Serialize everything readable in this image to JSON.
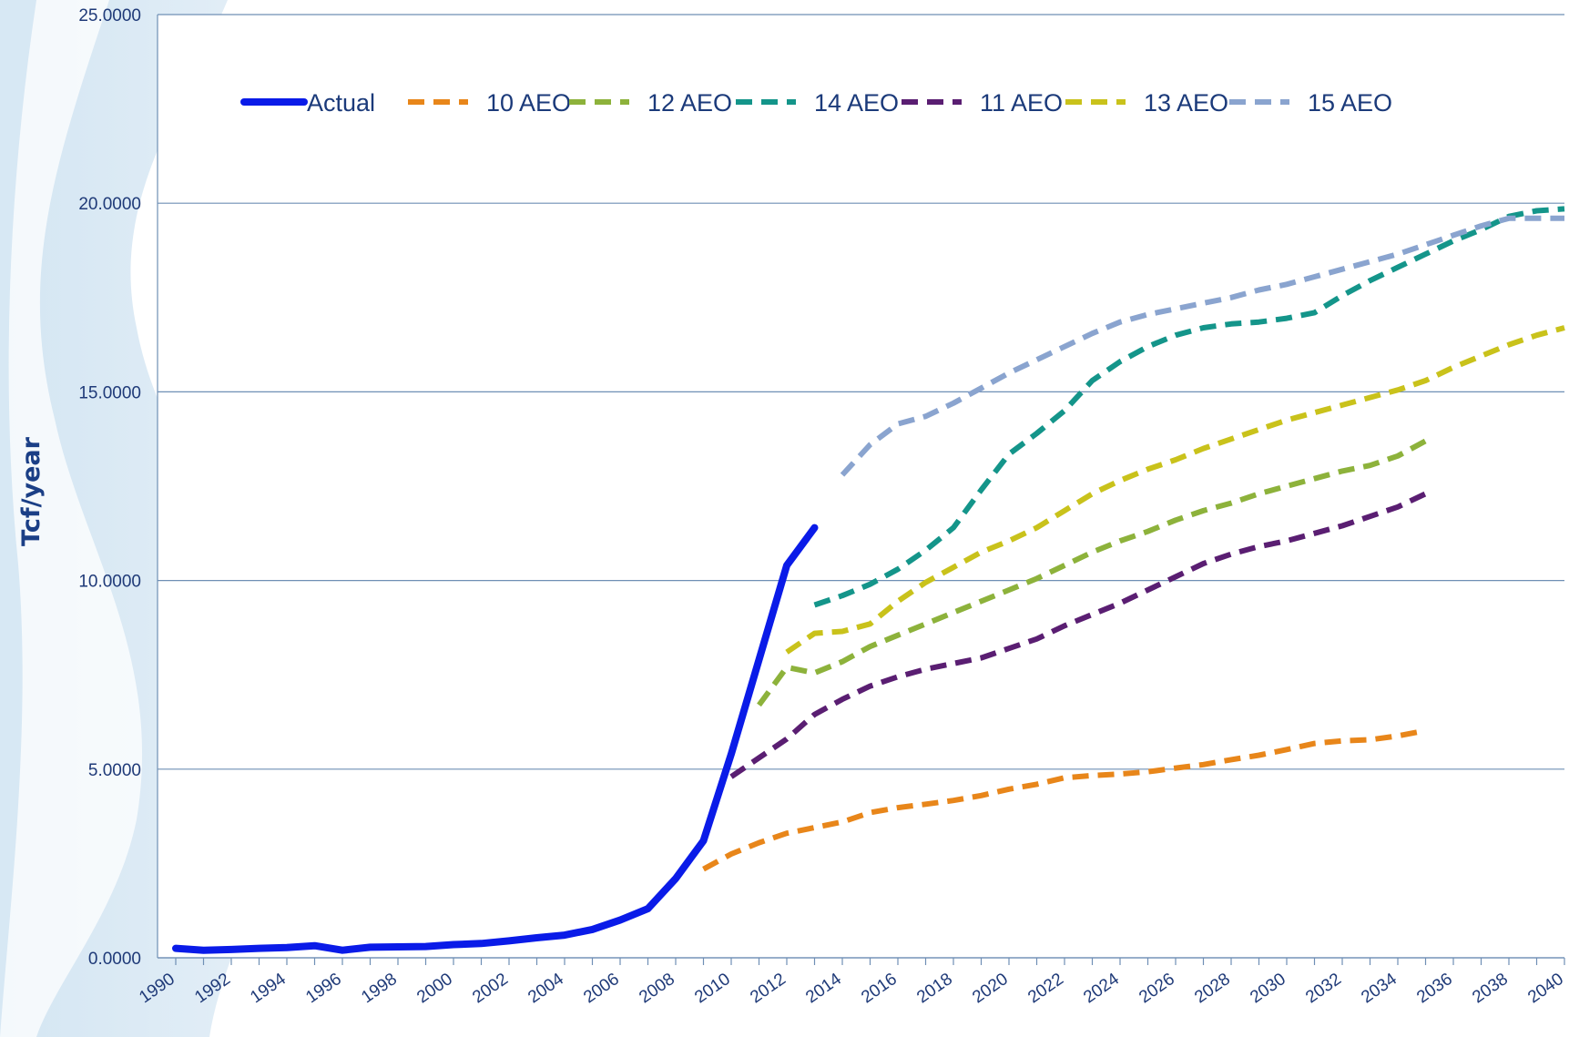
{
  "chart_data": {
    "type": "line",
    "ylabel": "Tcf/year",
    "xlim": [
      1990,
      2040
    ],
    "ylim": [
      0,
      25
    ],
    "y_ticks": [
      "0.0000",
      "5.0000",
      "10.0000",
      "15.0000",
      "20.0000",
      "25.0000"
    ],
    "x_ticks": [
      "1990",
      "1992",
      "1994",
      "1996",
      "1998",
      "2000",
      "2002",
      "2004",
      "2006",
      "2008",
      "2010",
      "2012",
      "2014",
      "2016",
      "2018",
      "2020",
      "2022",
      "2024",
      "2026",
      "2028",
      "2030",
      "2032",
      "2034",
      "2036",
      "2038",
      "2040"
    ],
    "grid": "horizontal",
    "legend_position": "top",
    "series": [
      {
        "name": "Actual",
        "color": "#0a1be8",
        "style": "solid",
        "x": [
          1990,
          1991,
          1992,
          1993,
          1994,
          1995,
          1996,
          1997,
          1998,
          1999,
          2000,
          2001,
          2002,
          2003,
          2004,
          2005,
          2006,
          2007,
          2008,
          2009,
          2010,
          2011,
          2012,
          2013
        ],
        "y": [
          0.25,
          0.2,
          0.22,
          0.25,
          0.27,
          0.32,
          0.2,
          0.28,
          0.29,
          0.3,
          0.35,
          0.38,
          0.45,
          0.53,
          0.6,
          0.75,
          1.0,
          1.3,
          2.1,
          3.1,
          5.4,
          7.9,
          10.4,
          11.4
        ]
      },
      {
        "name": "10 AEO",
        "color": "#e8861a",
        "style": "dashed",
        "x": [
          2009,
          2010,
          2011,
          2012,
          2013,
          2014,
          2015,
          2016,
          2017,
          2018,
          2019,
          2020,
          2021,
          2022,
          2023,
          2024,
          2025,
          2026,
          2027,
          2028,
          2029,
          2030,
          2031,
          2032,
          2033,
          2034,
          2035
        ],
        "y": [
          2.35,
          2.75,
          3.05,
          3.3,
          3.45,
          3.6,
          3.85,
          3.98,
          4.07,
          4.17,
          4.3,
          4.47,
          4.6,
          4.77,
          4.83,
          4.87,
          4.93,
          5.03,
          5.12,
          5.25,
          5.37,
          5.52,
          5.68,
          5.75,
          5.78,
          5.88,
          6.02
        ]
      },
      {
        "name": "12 AEO",
        "color": "#8db23b",
        "style": "dashed",
        "x": [
          2011,
          2012,
          2013,
          2014,
          2015,
          2016,
          2017,
          2018,
          2019,
          2020,
          2021,
          2022,
          2023,
          2024,
          2025,
          2026,
          2027,
          2028,
          2029,
          2030,
          2031,
          2032,
          2033,
          2034,
          2035
        ],
        "y": [
          6.7,
          7.7,
          7.55,
          7.85,
          8.25,
          8.55,
          8.85,
          9.15,
          9.45,
          9.75,
          10.05,
          10.4,
          10.75,
          11.05,
          11.3,
          11.6,
          11.85,
          12.05,
          12.3,
          12.5,
          12.7,
          12.9,
          13.05,
          13.3,
          13.7
        ]
      },
      {
        "name": "14 AEO",
        "color": "#14958a",
        "style": "dashed",
        "x": [
          2013,
          2014,
          2015,
          2016,
          2017,
          2018,
          2019,
          2020,
          2021,
          2022,
          2023,
          2024,
          2025,
          2026,
          2027,
          2028,
          2029,
          2030,
          2031,
          2032,
          2033,
          2034,
          2035,
          2036,
          2037,
          2038,
          2039,
          2040
        ],
        "y": [
          9.35,
          9.6,
          9.9,
          10.3,
          10.8,
          11.4,
          12.4,
          13.35,
          13.9,
          14.5,
          15.3,
          15.8,
          16.2,
          16.5,
          16.7,
          16.8,
          16.85,
          16.95,
          17.1,
          17.55,
          17.95,
          18.3,
          18.65,
          19.0,
          19.3,
          19.65,
          19.8,
          19.85
        ]
      },
      {
        "name": "11 AEO",
        "color": "#5a1e72",
        "style": "dashed",
        "x": [
          2010,
          2011,
          2012,
          2013,
          2014,
          2015,
          2016,
          2017,
          2018,
          2019,
          2020,
          2021,
          2022,
          2023,
          2024,
          2025,
          2026,
          2027,
          2028,
          2029,
          2030,
          2031,
          2032,
          2033,
          2034,
          2035
        ],
        "y": [
          4.8,
          5.3,
          5.8,
          6.45,
          6.85,
          7.2,
          7.45,
          7.65,
          7.8,
          7.95,
          8.2,
          8.45,
          8.8,
          9.1,
          9.4,
          9.75,
          10.1,
          10.45,
          10.7,
          10.9,
          11.05,
          11.25,
          11.45,
          11.7,
          11.95,
          12.3
        ]
      },
      {
        "name": "13 AEO",
        "color": "#c9c21b",
        "style": "dashed",
        "x": [
          2012,
          2013,
          2014,
          2015,
          2016,
          2017,
          2018,
          2019,
          2020,
          2021,
          2022,
          2023,
          2024,
          2025,
          2026,
          2027,
          2028,
          2029,
          2030,
          2031,
          2032,
          2033,
          2034,
          2035,
          2036,
          2037,
          2038,
          2039,
          2040
        ],
        "y": [
          8.1,
          8.6,
          8.65,
          8.85,
          9.45,
          9.95,
          10.35,
          10.75,
          11.05,
          11.4,
          11.85,
          12.3,
          12.65,
          12.95,
          13.2,
          13.5,
          13.75,
          14.0,
          14.25,
          14.45,
          14.65,
          14.85,
          15.05,
          15.3,
          15.65,
          15.95,
          16.25,
          16.5,
          16.7
        ]
      },
      {
        "name": "15 AEO",
        "color": "#8aa4cf",
        "style": "dashed",
        "x": [
          2014,
          2015,
          2016,
          2017,
          2018,
          2019,
          2020,
          2021,
          2022,
          2023,
          2024,
          2025,
          2026,
          2027,
          2028,
          2029,
          2030,
          2031,
          2032,
          2033,
          2034,
          2035,
          2036,
          2037,
          2038,
          2039,
          2040
        ],
        "y": [
          12.8,
          13.6,
          14.15,
          14.35,
          14.7,
          15.1,
          15.5,
          15.85,
          16.2,
          16.55,
          16.85,
          17.05,
          17.2,
          17.35,
          17.5,
          17.7,
          17.85,
          18.05,
          18.25,
          18.45,
          18.65,
          18.9,
          19.15,
          19.4,
          19.6,
          19.6,
          19.6
        ]
      }
    ]
  }
}
